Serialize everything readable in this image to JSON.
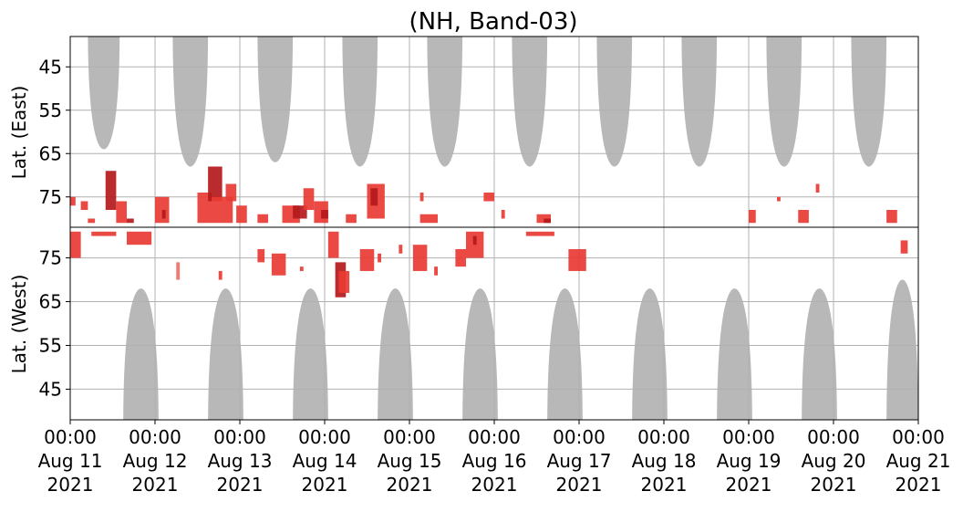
{
  "chart_data": {
    "type": "heatmap",
    "title": "(NH, Band-03)",
    "ylabel_top": "Lat. (East)",
    "ylabel_bottom": "Lat. (West)",
    "x_range_hours": [
      0,
      240
    ],
    "x_ticks": [
      {
        "hour": 0,
        "time": "00:00",
        "date": "Aug 11",
        "year": "2021"
      },
      {
        "hour": 24,
        "time": "00:00",
        "date": "Aug 12",
        "year": "2021"
      },
      {
        "hour": 48,
        "time": "00:00",
        "date": "Aug 13",
        "year": "2021"
      },
      {
        "hour": 72,
        "time": "00:00",
        "date": "Aug 14",
        "year": "2021"
      },
      {
        "hour": 96,
        "time": "00:00",
        "date": "Aug 15",
        "year": "2021"
      },
      {
        "hour": 120,
        "time": "00:00",
        "date": "Aug 16",
        "year": "2021"
      },
      {
        "hour": 144,
        "time": "00:00",
        "date": "Aug 17",
        "year": "2021"
      },
      {
        "hour": 168,
        "time": "00:00",
        "date": "Aug 18",
        "year": "2021"
      },
      {
        "hour": 192,
        "time": "00:00",
        "date": "Aug 19",
        "year": "2021"
      },
      {
        "hour": 216,
        "time": "00:00",
        "date": "Aug 20",
        "year": "2021"
      },
      {
        "hour": 240,
        "time": "00:00",
        "date": "Aug 21",
        "year": "2021"
      }
    ],
    "y_ticks_top": [
      "45",
      "55",
      "65",
      "75"
    ],
    "y_ticks_bottom": [
      "75",
      "65",
      "55",
      "45"
    ],
    "y_tick_values": [
      45,
      55,
      65,
      75
    ],
    "y_range_lat": [
      38,
      82
    ],
    "grid": true,
    "colors": {
      "daylight": "#b8b8b8",
      "event_light": "#f07068",
      "event": "#e83b33",
      "event_dark": "#b3191b",
      "grid": "#b0b0b0",
      "divider": "#000000"
    },
    "daylight_regions_top": [
      {
        "start_hour": 5,
        "end_hour": 14,
        "min_lat": 64
      },
      {
        "start_hour": 29,
        "end_hour": 39,
        "min_lat": 68
      },
      {
        "start_hour": 53,
        "end_hour": 63,
        "min_lat": 67
      },
      {
        "start_hour": 77,
        "end_hour": 87,
        "min_lat": 68
      },
      {
        "start_hour": 101,
        "end_hour": 111,
        "min_lat": 68
      },
      {
        "start_hour": 125,
        "end_hour": 135,
        "min_lat": 68
      },
      {
        "start_hour": 149,
        "end_hour": 159,
        "min_lat": 68
      },
      {
        "start_hour": 173,
        "end_hour": 183,
        "min_lat": 68
      },
      {
        "start_hour": 197,
        "end_hour": 207,
        "min_lat": 68
      },
      {
        "start_hour": 221,
        "end_hour": 231,
        "min_lat": 68
      }
    ],
    "daylight_regions_bottom": [
      {
        "start_hour": 15,
        "end_hour": 25,
        "min_lat": 68
      },
      {
        "start_hour": 39,
        "end_hour": 49,
        "min_lat": 68
      },
      {
        "start_hour": 63,
        "end_hour": 73,
        "min_lat": 68
      },
      {
        "start_hour": 87,
        "end_hour": 97,
        "min_lat": 68
      },
      {
        "start_hour": 111,
        "end_hour": 121,
        "min_lat": 68
      },
      {
        "start_hour": 135,
        "end_hour": 145,
        "min_lat": 68
      },
      {
        "start_hour": 159,
        "end_hour": 169,
        "min_lat": 68
      },
      {
        "start_hour": 183,
        "end_hour": 193,
        "min_lat": 68
      },
      {
        "start_hour": 207,
        "end_hour": 217,
        "min_lat": 68
      },
      {
        "start_hour": 231,
        "end_hour": 240,
        "min_lat": 70
      }
    ],
    "events_top": [
      {
        "start_hour": 0,
        "end_hour": 1.5,
        "lat_low": 75,
        "lat_high": 77,
        "level": "event"
      },
      {
        "start_hour": 3,
        "end_hour": 5,
        "lat_low": 76,
        "lat_high": 78,
        "level": "event"
      },
      {
        "start_hour": 5,
        "end_hour": 7,
        "lat_low": 80,
        "lat_high": 81,
        "level": "event"
      },
      {
        "start_hour": 10,
        "end_hour": 13,
        "lat_low": 69,
        "lat_high": 78,
        "level": "event_dark"
      },
      {
        "start_hour": 13,
        "end_hour": 16,
        "lat_low": 76,
        "lat_high": 81,
        "level": "event"
      },
      {
        "start_hour": 16,
        "end_hour": 18,
        "lat_low": 80,
        "lat_high": 81,
        "level": "event_dark"
      },
      {
        "start_hour": 24,
        "end_hour": 28,
        "lat_low": 75,
        "lat_high": 81,
        "level": "event"
      },
      {
        "start_hour": 26,
        "end_hour": 27,
        "lat_low": 78,
        "lat_high": 80,
        "level": "event_dark"
      },
      {
        "start_hour": 36,
        "end_hour": 40,
        "lat_low": 74,
        "lat_high": 81,
        "level": "event"
      },
      {
        "start_hour": 39,
        "end_hour": 43,
        "lat_low": 68,
        "lat_high": 76,
        "level": "event_dark"
      },
      {
        "start_hour": 40,
        "end_hour": 46,
        "lat_low": 75,
        "lat_high": 81,
        "level": "event"
      },
      {
        "start_hour": 44,
        "end_hour": 47,
        "lat_low": 72,
        "lat_high": 76,
        "level": "event"
      },
      {
        "start_hour": 47,
        "end_hour": 50,
        "lat_low": 77,
        "lat_high": 81,
        "level": "event"
      },
      {
        "start_hour": 53,
        "end_hour": 56,
        "lat_low": 79,
        "lat_high": 81,
        "level": "event"
      },
      {
        "start_hour": 60,
        "end_hour": 65,
        "lat_low": 77,
        "lat_high": 81,
        "level": "event"
      },
      {
        "start_hour": 63,
        "end_hour": 67,
        "lat_low": 77,
        "lat_high": 80,
        "level": "event_dark"
      },
      {
        "start_hour": 66,
        "end_hour": 69,
        "lat_low": 73,
        "lat_high": 78,
        "level": "event"
      },
      {
        "start_hour": 69,
        "end_hour": 73,
        "lat_low": 76,
        "lat_high": 81,
        "level": "event"
      },
      {
        "start_hour": 71,
        "end_hour": 73,
        "lat_low": 78,
        "lat_high": 80,
        "level": "event_dark"
      },
      {
        "start_hour": 78,
        "end_hour": 81,
        "lat_low": 79,
        "lat_high": 81,
        "level": "event"
      },
      {
        "start_hour": 84,
        "end_hour": 89,
        "lat_low": 72,
        "lat_high": 80,
        "level": "event"
      },
      {
        "start_hour": 85,
        "end_hour": 87,
        "lat_low": 73,
        "lat_high": 77,
        "level": "event_dark"
      },
      {
        "start_hour": 99,
        "end_hour": 104,
        "lat_low": 79,
        "lat_high": 81,
        "level": "event"
      },
      {
        "start_hour": 99,
        "end_hour": 100,
        "lat_low": 74,
        "lat_high": 76,
        "level": "event"
      },
      {
        "start_hour": 117,
        "end_hour": 120,
        "lat_low": 74,
        "lat_high": 76,
        "level": "event"
      },
      {
        "start_hour": 122,
        "end_hour": 123,
        "lat_low": 78,
        "lat_high": 80,
        "level": "event"
      },
      {
        "start_hour": 132,
        "end_hour": 136,
        "lat_low": 79,
        "lat_high": 81,
        "level": "event"
      },
      {
        "start_hour": 134,
        "end_hour": 136,
        "lat_low": 80,
        "lat_high": 81,
        "level": "event_dark"
      },
      {
        "start_hour": 200,
        "end_hour": 201,
        "lat_low": 75,
        "lat_high": 76,
        "level": "event"
      },
      {
        "start_hour": 192,
        "end_hour": 194,
        "lat_low": 78,
        "lat_high": 81,
        "level": "event"
      },
      {
        "start_hour": 206,
        "end_hour": 209,
        "lat_low": 78,
        "lat_high": 81,
        "level": "event"
      },
      {
        "start_hour": 211,
        "end_hour": 212,
        "lat_low": 72,
        "lat_high": 74,
        "level": "event"
      },
      {
        "start_hour": 231,
        "end_hour": 234,
        "lat_low": 78,
        "lat_high": 81,
        "level": "event"
      }
    ],
    "events_bottom": [
      {
        "start_hour": 0,
        "end_hour": 3,
        "lat_low": 75,
        "lat_high": 81,
        "level": "event"
      },
      {
        "start_hour": 6,
        "end_hour": 13,
        "lat_low": 80,
        "lat_high": 81,
        "level": "event"
      },
      {
        "start_hour": 16,
        "end_hour": 23,
        "lat_low": 78,
        "lat_high": 81,
        "level": "event"
      },
      {
        "start_hour": 30,
        "end_hour": 31,
        "lat_low": 70,
        "lat_high": 74,
        "level": "event_light"
      },
      {
        "start_hour": 42,
        "end_hour": 43,
        "lat_low": 70,
        "lat_high": 72,
        "level": "event"
      },
      {
        "start_hour": 53,
        "end_hour": 55,
        "lat_low": 74,
        "lat_high": 77,
        "level": "event"
      },
      {
        "start_hour": 57,
        "end_hour": 61,
        "lat_low": 71,
        "lat_high": 76,
        "level": "event"
      },
      {
        "start_hour": 65,
        "end_hour": 66,
        "lat_low": 72,
        "lat_high": 73,
        "level": "event"
      },
      {
        "start_hour": 73,
        "end_hour": 76,
        "lat_low": 75,
        "lat_high": 81,
        "level": "event"
      },
      {
        "start_hour": 75,
        "end_hour": 78,
        "lat_low": 66,
        "lat_high": 74,
        "level": "event_dark"
      },
      {
        "start_hour": 76,
        "end_hour": 79,
        "lat_low": 67,
        "lat_high": 72,
        "level": "event"
      },
      {
        "start_hour": 82,
        "end_hour": 86,
        "lat_low": 72,
        "lat_high": 77,
        "level": "event"
      },
      {
        "start_hour": 87,
        "end_hour": 88,
        "lat_low": 74,
        "lat_high": 76,
        "level": "event"
      },
      {
        "start_hour": 93,
        "end_hour": 94,
        "lat_low": 76,
        "lat_high": 78,
        "level": "event"
      },
      {
        "start_hour": 97,
        "end_hour": 101,
        "lat_low": 72,
        "lat_high": 78,
        "level": "event"
      },
      {
        "start_hour": 103,
        "end_hour": 104,
        "lat_low": 71,
        "lat_high": 73,
        "level": "event"
      },
      {
        "start_hour": 109,
        "end_hour": 112,
        "lat_low": 73,
        "lat_high": 77,
        "level": "event"
      },
      {
        "start_hour": 112,
        "end_hour": 117,
        "lat_low": 75,
        "lat_high": 81,
        "level": "event"
      },
      {
        "start_hour": 114,
        "end_hour": 115,
        "lat_low": 78,
        "lat_high": 80,
        "level": "event_dark"
      },
      {
        "start_hour": 129,
        "end_hour": 137,
        "lat_low": 80,
        "lat_high": 81,
        "level": "event"
      },
      {
        "start_hour": 141,
        "end_hour": 146,
        "lat_low": 72,
        "lat_high": 77,
        "level": "event"
      },
      {
        "start_hour": 235,
        "end_hour": 237,
        "lat_low": 76,
        "lat_high": 79,
        "level": "event"
      }
    ]
  }
}
